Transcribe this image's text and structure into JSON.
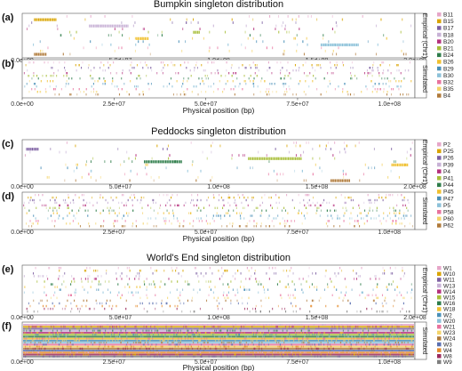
{
  "figure": {
    "sections": [
      {
        "title": "Bumpkin singleton distribution",
        "legend": [
          "B11",
          "B15",
          "B17",
          "B18",
          "B20",
          "B21",
          "B24",
          "B26",
          "B29",
          "B30",
          "B32",
          "B35",
          "B4"
        ],
        "panels": [
          {
            "letter": "(a)",
            "strip_label": "Empirical (Chr1)",
            "ticks": [
              "0.0e+00",
              "5.0e+07",
              "1.0e+08",
              "1.5e+08",
              "2.0e+08"
            ],
            "show_xlabel": false
          },
          {
            "letter": "(b)",
            "strip_label": "Simulated",
            "ticks": [
              "0.0e+00",
              "2.5e+07",
              "5.0e+07",
              "7.5e+07",
              "1.0e+08"
            ],
            "show_xlabel": true
          }
        ]
      },
      {
        "title": "Peddocks singleton distribution",
        "legend": [
          "P2",
          "P25",
          "P26",
          "P39",
          "P4",
          "P41",
          "P44",
          "P45",
          "P47",
          "P5",
          "P58",
          "P60",
          "P62"
        ],
        "panels": [
          {
            "letter": "(c)",
            "strip_label": "Empirical (Chr1)",
            "ticks": [
              "0.0e+00",
              "5.0e+07",
              "1.0e+08",
              "1.5e+08",
              "2.0e+08"
            ],
            "show_xlabel": false
          },
          {
            "letter": "(d)",
            "strip_label": "Simulated",
            "ticks": [
              "0.0e+00",
              "2.5e+07",
              "5.0e+07",
              "7.5e+07",
              "1.0e+08"
            ],
            "show_xlabel": true
          }
        ]
      },
      {
        "title": "World's End singleton distribution",
        "legend": [
          "W1",
          "W10",
          "W11",
          "W13",
          "W14",
          "W15",
          "W16",
          "W18",
          "W2",
          "W20",
          "W21",
          "W23",
          "W24",
          "W3",
          "W4",
          "W8",
          "W9"
        ],
        "panels": [
          {
            "letter": "(e)",
            "strip_label": "Empirical (Chr1)",
            "ticks": [
              "0.0e+00",
              "5.0e+07",
              "1.0e+08",
              "1.5e+08",
              "2.0e+08"
            ],
            "show_xlabel": false
          },
          {
            "letter": "(f)",
            "strip_label": "Simulated",
            "ticks": [
              "0.0e+00",
              "2.5e+07",
              "5.0e+07",
              "7.5e+07",
              "1.0e+08"
            ],
            "show_xlabel": true
          }
        ]
      }
    ],
    "xlabel": "Physical position (bp)",
    "palette": [
      "#E6A6C8",
      "#D9A400",
      "#7E61A3",
      "#C8B2D6",
      "#B5327E",
      "#A9BF3B",
      "#2E7D4A",
      "#F0C02F",
      "#4A90B8",
      "#8CC1D9",
      "#E8739E",
      "#F4D46A",
      "#B07A3A",
      "#5A6FB0",
      "#E58A2A",
      "#9C2A5C",
      "#7F7F7F"
    ]
  },
  "chart_data": [
    {
      "type": "scatter",
      "title": "Bumpkin singleton distribution",
      "panel": "(a)",
      "strip": "Empirical (Chr1)",
      "xlim": [
        0,
        200000000
      ],
      "series_names": [
        "B11",
        "B15",
        "B17",
        "B18",
        "B20",
        "B21",
        "B24",
        "B26",
        "B29",
        "B30",
        "B32",
        "B35",
        "B4"
      ],
      "clusters": [
        {
          "series": "B18",
          "x": [
            34000000,
            54000000
          ]
        },
        {
          "series": "B26",
          "x": [
            58000000,
            64000000
          ]
        },
        {
          "series": "B21",
          "x": [
            87000000,
            90000000
          ]
        },
        {
          "series": "B30",
          "x": [
            152000000,
            171000000
          ]
        },
        {
          "series": "B15",
          "x": [
            6000000,
            17000000
          ]
        },
        {
          "series": "B4",
          "x": [
            6000000,
            12000000
          ]
        }
      ]
    },
    {
      "type": "scatter",
      "title": "Bumpkin singleton distribution",
      "panel": "(b)",
      "strip": "Simulated",
      "xlim": [
        0,
        107000000
      ],
      "series_names": [
        "B11",
        "B15",
        "B17",
        "B18",
        "B20",
        "B21",
        "B24",
        "B26",
        "B29",
        "B30",
        "B32",
        "B35",
        "B4"
      ]
    },
    {
      "type": "scatter",
      "title": "Peddocks singleton distribution",
      "panel": "(c)",
      "strip": "Empirical (Chr1)",
      "xlim": [
        0,
        200000000
      ],
      "series_names": [
        "P2",
        "P25",
        "P26",
        "P39",
        "P4",
        "P41",
        "P44",
        "P45",
        "P47",
        "P5",
        "P58",
        "P60",
        "P62"
      ],
      "clusters": [
        {
          "series": "P26",
          "x": [
            2000000,
            8000000
          ]
        },
        {
          "series": "P44",
          "x": [
            62000000,
            81000000
          ]
        },
        {
          "series": "P41",
          "x": [
            115000000,
            142000000
          ]
        },
        {
          "series": "P62",
          "x": [
            157000000,
            167000000
          ]
        },
        {
          "series": "P45",
          "x": [
            188000000,
            196000000
          ]
        }
      ]
    },
    {
      "type": "scatter",
      "title": "Peddocks singleton distribution",
      "panel": "(d)",
      "strip": "Simulated",
      "xlim": [
        0,
        107000000
      ],
      "series_names": [
        "P2",
        "P25",
        "P26",
        "P39",
        "P4",
        "P41",
        "P44",
        "P45",
        "P47",
        "P5",
        "P58",
        "P60",
        "P62"
      ]
    },
    {
      "type": "scatter",
      "title": "World's End singleton distribution",
      "panel": "(e)",
      "strip": "Empirical (Chr1)",
      "xlim": [
        0,
        200000000
      ],
      "series_names": [
        "W1",
        "W10",
        "W11",
        "W13",
        "W14",
        "W15",
        "W16",
        "W18",
        "W2",
        "W20",
        "W21",
        "W23",
        "W24",
        "W3",
        "W4",
        "W8",
        "W9"
      ]
    },
    {
      "type": "scatter",
      "title": "World's End singleton distribution",
      "panel": "(f)",
      "strip": "Simulated",
      "xlim": [
        0,
        107000000
      ],
      "series_names": [
        "W1",
        "W10",
        "W11",
        "W13",
        "W14",
        "W15",
        "W16",
        "W18",
        "W2",
        "W20",
        "W21",
        "W23",
        "W24",
        "W3",
        "W4",
        "W8",
        "W9"
      ]
    }
  ]
}
